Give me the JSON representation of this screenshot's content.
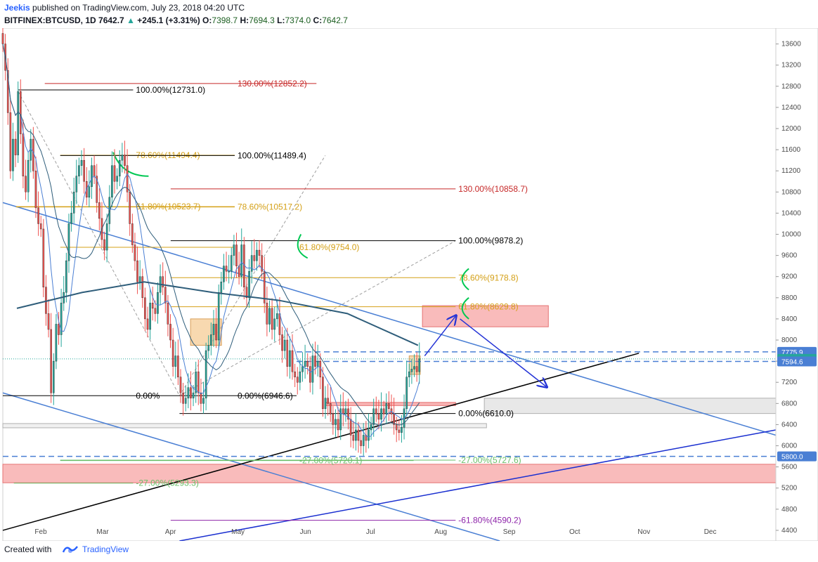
{
  "header": {
    "author": "Jeekis",
    "published": "published on TradingView.com, July 23, 2018 04:20 UTC",
    "symbol": "BITFINEX:BTCUSD, 1D",
    "last": "7642.7",
    "change": "+245.1 (+3.31%)",
    "o_label": "O:",
    "o": "7398.7",
    "h_label": "H:",
    "h": "7694.3",
    "l_label": "L:",
    "l": "7374.0",
    "c_label": "C:",
    "c": "7642.7"
  },
  "footer": {
    "created_with": "Created with",
    "brand": "TradingView"
  },
  "colors": {
    "bull": "#26a69a",
    "bear": "#ef5350",
    "fib_black": "#000000",
    "fib_red": "#c62828",
    "fib_gold": "#d4a017",
    "fib_green": "#6abf69",
    "fib_purple": "#8e24aa",
    "trend_blue": "#4a7fd4",
    "ma_dark": "#2e5d7a",
    "zone_red": "#f8b4b4",
    "zone_orange": "#f8d9b0",
    "arrow_blue": "#2433d6"
  },
  "chart_data": {
    "type": "candlestick",
    "symbol": "BITFINEX:BTCUSD",
    "interval": "1D",
    "x_range": [
      "2018-01-15",
      "2018-12-31"
    ],
    "y_range": [
      4200,
      13900
    ],
    "x_ticks": [
      {
        "label": "Feb",
        "date": "2018-02-01"
      },
      {
        "label": "Mar",
        "date": "2018-03-01"
      },
      {
        "label": "Apr",
        "date": "2018-04-01"
      },
      {
        "label": "May",
        "date": "2018-05-01"
      },
      {
        "label": "Jun",
        "date": "2018-06-01"
      },
      {
        "label": "Jul",
        "date": "2018-07-01"
      },
      {
        "label": "Aug",
        "date": "2018-08-01"
      },
      {
        "label": "Sep",
        "date": "2018-09-01"
      },
      {
        "label": "Oct",
        "date": "2018-10-01"
      },
      {
        "label": "Nov",
        "date": "2018-11-01"
      },
      {
        "label": "Dec",
        "date": "2018-12-01"
      }
    ],
    "y_ticks": [
      4400,
      4800,
      5200,
      5600,
      6000,
      6400,
      6800,
      7200,
      7600,
      8000,
      8400,
      8800,
      9200,
      9600,
      10000,
      10400,
      10800,
      11200,
      11600,
      12000,
      12400,
      12800,
      13200,
      13600
    ],
    "price_labels": [
      {
        "text": "7775.9",
        "price": 7775.9,
        "color": "#4a7fd4"
      },
      {
        "text": "7642.7",
        "price": 7642.7,
        "color": "#26a69a"
      },
      {
        "text": "7594.6",
        "price": 7594.6,
        "color": "#4a7fd4"
      },
      {
        "text": "5800.0",
        "price": 5800.0,
        "color": "#4a7fd4"
      }
    ],
    "closes": [
      13600,
      13100,
      12300,
      11200,
      11800,
      11500,
      12700,
      11900,
      11100,
      10800,
      11400,
      11800,
      11200,
      10500,
      10200,
      10100,
      9000,
      8500,
      8200,
      7000,
      7600,
      8300,
      8100,
      8700,
      8900,
      9500,
      10200,
      10400,
      10800,
      11100,
      11300,
      11400,
      11000,
      10700,
      10900,
      11300,
      11100,
      10600,
      10300,
      9900,
      9700,
      10200,
      10700,
      11300,
      11000,
      11100,
      11400,
      11500,
      11300,
      10800,
      10200,
      9800,
      9500,
      9100,
      9200,
      8800,
      8400,
      8200,
      8700,
      8600,
      8500,
      8900,
      9200,
      9000,
      8700,
      8300,
      8000,
      7500,
      7700,
      7300,
      7000,
      6800,
      6900,
      7100,
      6900,
      7000,
      7400,
      7000,
      6800,
      6900,
      7800,
      7900,
      8100,
      8300,
      8000,
      8900,
      9100,
      9400,
      9300,
      9300,
      9600,
      9800,
      9400,
      9200,
      9800,
      9000,
      8800,
      9300,
      9600,
      9500,
      9700,
      9600,
      9300,
      8700,
      8300,
      8600,
      8200,
      8400,
      8500,
      8100,
      7800,
      8000,
      7500,
      7800,
      7400,
      7300,
      7200,
      7400,
      7500,
      7600,
      7500,
      7200,
      7700,
      7500,
      7600,
      7300,
      6700,
      6900,
      6800,
      6600,
      6400,
      6500,
      6300,
      6700,
      6600,
      6700,
      6500,
      6200,
      6100,
      6300,
      6100,
      6000,
      6200,
      6100,
      6300,
      6400,
      6700,
      6600,
      6500,
      6700,
      6600,
      6800,
      6700,
      6600,
      6400,
      6300,
      6250,
      6350,
      6700,
      7300,
      7400,
      7450,
      7500,
      7400,
      7642.7
    ],
    "fib_levels": [
      {
        "text": "100.00%(12731.0)",
        "price": 12731.0,
        "color": "#000000"
      },
      {
        "text": "130.00%(12852.2)",
        "price": 12852.2,
        "color": "#c62828"
      },
      {
        "text": "78.60%(11494.4)",
        "price": 11494.4,
        "color": "#d4a017"
      },
      {
        "text": "100.00%(11489.4)",
        "price": 11489.4,
        "color": "#000000"
      },
      {
        "text": "130.00%(10858.7)",
        "price": 10858.7,
        "color": "#c62828"
      },
      {
        "text": "61.80%(10523.7)",
        "price": 10523.7,
        "color": "#d4a017"
      },
      {
        "text": "78.60%(10517.2)",
        "price": 10517.2,
        "color": "#d4a017"
      },
      {
        "text": "100.00%(9878.2)",
        "price": 9878.2,
        "color": "#000000"
      },
      {
        "text": "61.80%(9754.0)",
        "price": 9754.0,
        "color": "#d4a017"
      },
      {
        "text": "78.60%(9178.8)",
        "price": 9178.8,
        "color": "#d4a017"
      },
      {
        "text": "61.80%(8629.8)",
        "price": 8629.8,
        "color": "#d4a017"
      },
      {
        "text": "0.00%(6946.6)",
        "price": 6946.6,
        "color": "#000000"
      },
      {
        "text": "0.00%(6610.0)",
        "price": 6610.0,
        "color": "#000000"
      },
      {
        "text": "-27.00%(5720.1)",
        "price": 5720.1,
        "color": "#6abf69"
      },
      {
        "text": "-27.00%(5727.6)",
        "price": 5727.6,
        "color": "#6abf69"
      },
      {
        "text": "-27.00%(5293.3)",
        "price": 5293.3,
        "color": "#6abf69"
      },
      {
        "text": "-61.80%(4590.2)",
        "price": 4590.2,
        "color": "#8e24aa"
      },
      {
        "text": "0.00%",
        "price": 6946.6,
        "color": "#000000"
      }
    ],
    "zones": [
      {
        "name": "resistance-zone",
        "from": "2018-07-24",
        "to": "2018-09-19",
        "top": 8650,
        "bottom": 8250,
        "color": "#f8b4b4"
      },
      {
        "name": "support-zone",
        "from": "2018-01-15",
        "to": "2018-12-31",
        "top": 5650,
        "bottom": 5300,
        "color": "#f8b4b4"
      },
      {
        "name": "gray-zone",
        "from": "2018-08-21",
        "to": "2018-12-31",
        "top": 6900,
        "bottom": 6610,
        "color": "#e6e6e6"
      }
    ],
    "dashed_levels": [
      7775.9,
      7594.6,
      5800.0
    ]
  }
}
